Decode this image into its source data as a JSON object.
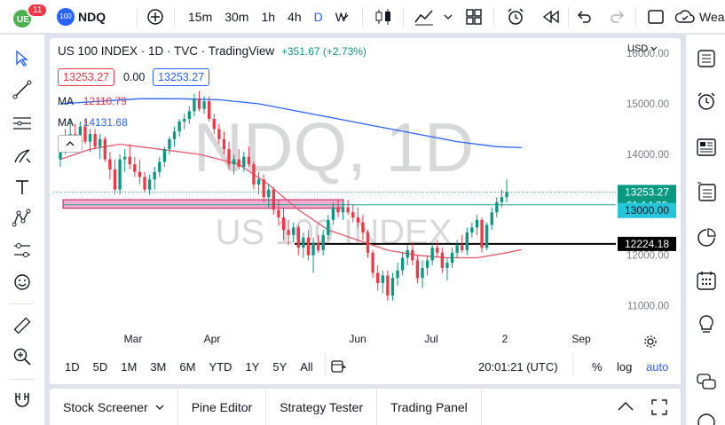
{
  "header": {
    "symbol": "NDQ",
    "badge_count": "11",
    "intervals": [
      "15m",
      "30m",
      "1h",
      "4h",
      "D",
      "W"
    ],
    "active_interval": "D",
    "account_label": "Weal"
  },
  "legend": {
    "title": "US 100 INDEX · 1D · TVC · TradingView",
    "change": "+351.67 (+2.73%)",
    "bid": "13253.27",
    "spread": "0.00",
    "ask": "13253.27",
    "ma1_label": "MA",
    "ma1_value": "12110.79",
    "ma2_label": "MA",
    "ma2_value": "14131.68"
  },
  "watermark": {
    "main": "NDQ, 1D",
    "sub": "US 100 INDEX"
  },
  "price_axis": {
    "currency": "USD",
    "ticks": [
      "16000.00",
      "15000.00",
      "14000.00",
      "13000.00",
      "12000.00",
      "11000.00"
    ],
    "current_price": "13253.27",
    "countdown": "01:14:39",
    "line_price": "13000.00",
    "support_price": "12224.18"
  },
  "time_axis": {
    "labels": [
      "Mar",
      "Apr",
      "Jun",
      "Jul",
      "2",
      "Sep"
    ]
  },
  "ranges": [
    "1D",
    "5D",
    "1M",
    "3M",
    "6M",
    "YTD",
    "1Y",
    "5Y",
    "All"
  ],
  "clock": "20:01:21 (UTC)",
  "scale_buttons": [
    "%",
    "log",
    "auto"
  ],
  "panel_tabs": [
    "Stock Screener",
    "Pine Editor",
    "Strategy Tester",
    "Trading Panel"
  ],
  "colors": {
    "up": "#089981",
    "down": "#f23645",
    "ma_fast": "#e8586a",
    "ma_slow": "#2962ff",
    "accent": "#2962ff",
    "zone_fill": "#f0a0c8",
    "zone_border": "#c2185b"
  },
  "chart_data": {
    "type": "candlestick",
    "ylim": [
      10500,
      16300
    ],
    "candles": [
      {
        "o": 13900,
        "h": 14350,
        "l": 13750,
        "c": 14200
      },
      {
        "o": 14200,
        "h": 14500,
        "l": 14000,
        "c": 14300
      },
      {
        "o": 14300,
        "h": 14700,
        "l": 14100,
        "c": 14400
      },
      {
        "o": 14400,
        "h": 14600,
        "l": 14150,
        "c": 14300
      },
      {
        "o": 14300,
        "h": 14650,
        "l": 14200,
        "c": 14550
      },
      {
        "o": 14550,
        "h": 14700,
        "l": 14200,
        "c": 14250
      },
      {
        "o": 14250,
        "h": 14500,
        "l": 14050,
        "c": 14400
      },
      {
        "o": 14400,
        "h": 14500,
        "l": 14100,
        "c": 14150
      },
      {
        "o": 14150,
        "h": 14400,
        "l": 13900,
        "c": 14300
      },
      {
        "o": 14300,
        "h": 14350,
        "l": 13850,
        "c": 13900
      },
      {
        "o": 13900,
        "h": 14050,
        "l": 13500,
        "c": 13700
      },
      {
        "o": 13700,
        "h": 13900,
        "l": 13200,
        "c": 13300
      },
      {
        "o": 13300,
        "h": 14000,
        "l": 13200,
        "c": 13900
      },
      {
        "o": 13900,
        "h": 14100,
        "l": 13650,
        "c": 13950
      },
      {
        "o": 13950,
        "h": 14200,
        "l": 13700,
        "c": 13800
      },
      {
        "o": 13800,
        "h": 13950,
        "l": 13550,
        "c": 13650
      },
      {
        "o": 13650,
        "h": 13900,
        "l": 13400,
        "c": 13550
      },
      {
        "o": 13550,
        "h": 13650,
        "l": 13250,
        "c": 13300
      },
      {
        "o": 13300,
        "h": 13600,
        "l": 13200,
        "c": 13500
      },
      {
        "o": 13500,
        "h": 13750,
        "l": 13300,
        "c": 13650
      },
      {
        "o": 13650,
        "h": 13950,
        "l": 13550,
        "c": 13850
      },
      {
        "o": 13850,
        "h": 14150,
        "l": 13750,
        "c": 14100
      },
      {
        "o": 14100,
        "h": 14350,
        "l": 14000,
        "c": 14300
      },
      {
        "o": 14300,
        "h": 14550,
        "l": 14150,
        "c": 14450
      },
      {
        "o": 14450,
        "h": 14700,
        "l": 14350,
        "c": 14650
      },
      {
        "o": 14650,
        "h": 14800,
        "l": 14500,
        "c": 14700
      },
      {
        "o": 14700,
        "h": 14950,
        "l": 14600,
        "c": 14850
      },
      {
        "o": 14850,
        "h": 15200,
        "l": 14750,
        "c": 15100
      },
      {
        "o": 15100,
        "h": 15250,
        "l": 14850,
        "c": 14900
      },
      {
        "o": 14900,
        "h": 15150,
        "l": 14800,
        "c": 15050
      },
      {
        "o": 15050,
        "h": 15150,
        "l": 14650,
        "c": 14700
      },
      {
        "o": 14700,
        "h": 14800,
        "l": 14400,
        "c": 14500
      },
      {
        "o": 14500,
        "h": 14600,
        "l": 14200,
        "c": 14300
      },
      {
        "o": 14300,
        "h": 14450,
        "l": 14000,
        "c": 14100
      },
      {
        "o": 14100,
        "h": 14250,
        "l": 13700,
        "c": 13800
      },
      {
        "o": 13800,
        "h": 14000,
        "l": 13600,
        "c": 13900
      },
      {
        "o": 13900,
        "h": 14100,
        "l": 13700,
        "c": 13750
      },
      {
        "o": 13750,
        "h": 14050,
        "l": 13650,
        "c": 13950
      },
      {
        "o": 13950,
        "h": 14150,
        "l": 13750,
        "c": 13800
      },
      {
        "o": 13800,
        "h": 13850,
        "l": 13300,
        "c": 13400
      },
      {
        "o": 13400,
        "h": 13650,
        "l": 13200,
        "c": 13500
      },
      {
        "o": 13500,
        "h": 13600,
        "l": 13050,
        "c": 13150
      },
      {
        "o": 13150,
        "h": 13400,
        "l": 12950,
        "c": 13300
      },
      {
        "o": 13300,
        "h": 13350,
        "l": 12800,
        "c": 12900
      },
      {
        "o": 12900,
        "h": 13100,
        "l": 12600,
        "c": 12750
      },
      {
        "o": 12750,
        "h": 12950,
        "l": 12300,
        "c": 12500
      },
      {
        "o": 12500,
        "h": 12700,
        "l": 12200,
        "c": 12400
      },
      {
        "o": 12400,
        "h": 12650,
        "l": 12250,
        "c": 12550
      },
      {
        "o": 12550,
        "h": 12600,
        "l": 12000,
        "c": 12150
      },
      {
        "o": 12150,
        "h": 12450,
        "l": 11950,
        "c": 12350
      },
      {
        "o": 12350,
        "h": 12500,
        "l": 11900,
        "c": 12000
      },
      {
        "o": 12000,
        "h": 12350,
        "l": 11650,
        "c": 12250
      },
      {
        "o": 12250,
        "h": 12400,
        "l": 12050,
        "c": 12100
      },
      {
        "o": 12100,
        "h": 12500,
        "l": 12000,
        "c": 12400
      },
      {
        "o": 12400,
        "h": 12800,
        "l": 12300,
        "c": 12700
      },
      {
        "o": 12700,
        "h": 13050,
        "l": 12600,
        "c": 12950
      },
      {
        "o": 12950,
        "h": 13100,
        "l": 12750,
        "c": 12850
      },
      {
        "o": 12850,
        "h": 13050,
        "l": 12700,
        "c": 12950
      },
      {
        "o": 12950,
        "h": 13100,
        "l": 12800,
        "c": 12850
      },
      {
        "o": 12850,
        "h": 13000,
        "l": 12650,
        "c": 12750
      },
      {
        "o": 12750,
        "h": 12950,
        "l": 12550,
        "c": 12650
      },
      {
        "o": 12650,
        "h": 12800,
        "l": 12300,
        "c": 12450
      },
      {
        "o": 12450,
        "h": 12500,
        "l": 11950,
        "c": 12050
      },
      {
        "o": 12050,
        "h": 12100,
        "l": 11550,
        "c": 11650
      },
      {
        "o": 11650,
        "h": 11800,
        "l": 11300,
        "c": 11450
      },
      {
        "o": 11450,
        "h": 11700,
        "l": 11250,
        "c": 11600
      },
      {
        "o": 11600,
        "h": 11700,
        "l": 11100,
        "c": 11200
      },
      {
        "o": 11200,
        "h": 11650,
        "l": 11100,
        "c": 11550
      },
      {
        "o": 11550,
        "h": 11850,
        "l": 11400,
        "c": 11700
      },
      {
        "o": 11700,
        "h": 12050,
        "l": 11600,
        "c": 11950
      },
      {
        "o": 11950,
        "h": 12200,
        "l": 11800,
        "c": 12100
      },
      {
        "o": 12100,
        "h": 12250,
        "l": 11800,
        "c": 11900
      },
      {
        "o": 11900,
        "h": 12000,
        "l": 11450,
        "c": 11550
      },
      {
        "o": 11550,
        "h": 11900,
        "l": 11350,
        "c": 11750
      },
      {
        "o": 11750,
        "h": 12000,
        "l": 11600,
        "c": 11900
      },
      {
        "o": 11900,
        "h": 12250,
        "l": 11800,
        "c": 12150
      },
      {
        "o": 12150,
        "h": 12300,
        "l": 11950,
        "c": 12050
      },
      {
        "o": 12050,
        "h": 12150,
        "l": 11650,
        "c": 11750
      },
      {
        "o": 11750,
        "h": 11950,
        "l": 11500,
        "c": 11850
      },
      {
        "o": 11850,
        "h": 12150,
        "l": 11750,
        "c": 12050
      },
      {
        "o": 12050,
        "h": 12300,
        "l": 11950,
        "c": 12200
      },
      {
        "o": 12200,
        "h": 12400,
        "l": 12050,
        "c": 12100
      },
      {
        "o": 12100,
        "h": 12550,
        "l": 12000,
        "c": 12450
      },
      {
        "o": 12450,
        "h": 12650,
        "l": 12350,
        "c": 12550
      },
      {
        "o": 12550,
        "h": 12800,
        "l": 12400,
        "c": 12700
      },
      {
        "o": 12700,
        "h": 12750,
        "l": 12050,
        "c": 12150
      },
      {
        "o": 12150,
        "h": 12650,
        "l": 12100,
        "c": 12600
      },
      {
        "o": 12600,
        "h": 12950,
        "l": 12500,
        "c": 12850
      },
      {
        "o": 12850,
        "h": 13150,
        "l": 12750,
        "c": 13050
      },
      {
        "o": 13050,
        "h": 13300,
        "l": 12950,
        "c": 13150
      },
      {
        "o": 13150,
        "h": 13500,
        "l": 13050,
        "c": 13253
      }
    ],
    "ma_fast": [
      [
        0,
        13900
      ],
      [
        6,
        14100
      ],
      [
        12,
        14200
      ],
      [
        20,
        14100
      ],
      [
        28,
        14000
      ],
      [
        36,
        13800
      ],
      [
        42,
        13400
      ],
      [
        48,
        12900
      ],
      [
        54,
        12500
      ],
      [
        60,
        12300
      ],
      [
        66,
        12100
      ],
      [
        72,
        12000
      ],
      [
        78,
        11950
      ],
      [
        84,
        11950
      ],
      [
        90,
        12050
      ],
      [
        93,
        12110
      ]
    ],
    "ma_slow": [
      [
        0,
        15000
      ],
      [
        8,
        15050
      ],
      [
        16,
        15100
      ],
      [
        24,
        15100
      ],
      [
        32,
        15080
      ],
      [
        40,
        15000
      ],
      [
        48,
        14850
      ],
      [
        56,
        14700
      ],
      [
        64,
        14550
      ],
      [
        72,
        14400
      ],
      [
        80,
        14250
      ],
      [
        88,
        14150
      ],
      [
        93,
        14131
      ]
    ],
    "zone": {
      "from_price": 13100,
      "to_price": 12930
    },
    "support_level": 12224.18,
    "price_line": 13000
  }
}
